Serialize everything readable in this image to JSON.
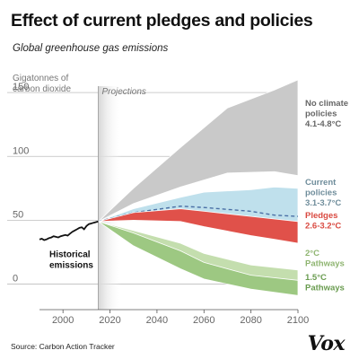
{
  "page": {
    "title": "Effect of current pledges and policies",
    "subtitle": "Global greenhouse gas emissions",
    "source": "Source: Carbon Action Tracker",
    "logo_text": "Vox"
  },
  "chart_data": {
    "type": "area",
    "ylabel_lines": [
      "Gigatonnes of",
      "carbon dioxide"
    ],
    "xlim": [
      1990,
      2100
    ],
    "ylim": [
      -20,
      155
    ],
    "x_ticks": [
      2000,
      2020,
      2040,
      2060,
      2080,
      2100
    ],
    "y_ticks": [
      0,
      50,
      100,
      150
    ],
    "grid": "horizontal",
    "projection_start": 2015,
    "projection_label": "Projections",
    "historical": {
      "name": "Historical emissions",
      "label_lines": [
        "Historical",
        "emissions"
      ],
      "color": "#111111",
      "x": [
        1990,
        1991,
        1992,
        1993,
        1994,
        1995,
        1996,
        1997,
        1998,
        1999,
        2000,
        2001,
        2002,
        2003,
        2004,
        2005,
        2006,
        2007,
        2008,
        2009,
        2010,
        2011,
        2012,
        2013,
        2014,
        2015
      ],
      "y": [
        35,
        35.5,
        34.5,
        35,
        36,
        36.5,
        37.5,
        37,
        36.5,
        37.5,
        38,
        38.5,
        38,
        39.5,
        41,
        42,
        43,
        44,
        44.5,
        43,
        45.5,
        47,
        47.5,
        48,
        48.5,
        49
      ]
    },
    "bands": [
      {
        "name": "No climate policies",
        "label_lines": [
          "No climate",
          "policies",
          "4.1-4.8°C"
        ],
        "color": "#c9c9c9",
        "label_color": "#666666",
        "x": [
          2015,
          2030,
          2050,
          2070,
          2090,
          2100
        ],
        "upper": [
          49,
          75,
          107,
          138,
          152,
          160
        ],
        "lower": [
          49,
          63,
          76,
          87,
          88,
          85
        ]
      },
      {
        "name": "Current policies",
        "label_lines": [
          "Current",
          "policies",
          "3.1-3.7°C"
        ],
        "color": "#bfe0ec",
        "label_color": "#6f8d9b",
        "x": [
          2015,
          2030,
          2050,
          2060,
          2080,
          2090,
          2100
        ],
        "upper": [
          49,
          59,
          68,
          72,
          74,
          76,
          75
        ],
        "lower": [
          49,
          53,
          55,
          52,
          48,
          46,
          44
        ],
        "median": [
          49,
          56,
          61,
          60,
          57,
          54,
          53
        ]
      },
      {
        "name": "Pledges",
        "label_lines": [
          "Pledges",
          "2.6-3.2°C"
        ],
        "color": "#e0514a",
        "label_color": "#d94a41",
        "x": [
          2015,
          2030,
          2050,
          2060,
          2080,
          2090,
          2100
        ],
        "upper": [
          49,
          56,
          59,
          57,
          53,
          51,
          49
        ],
        "lower": [
          49,
          50,
          49,
          45,
          38,
          35,
          32
        ]
      },
      {
        "name": "2°C Pathways",
        "label_lines": [
          "2°C",
          "Pathways"
        ],
        "color": "#c4deae",
        "label_color": "#8fb571",
        "x": [
          2015,
          2030,
          2050,
          2060,
          2080,
          2100
        ],
        "upper": [
          49,
          42,
          32,
          24,
          15,
          11
        ],
        "lower": [
          49,
          37,
          20,
          12,
          3,
          1
        ]
      },
      {
        "name": "1.5°C Pathways",
        "label_lines": [
          "1.5°C",
          "Pathways"
        ],
        "color": "#9dc882",
        "label_color": "#6a9c50",
        "x": [
          2015,
          2030,
          2050,
          2060,
          2080,
          2100
        ],
        "upper": [
          49,
          40,
          26,
          17,
          7,
          3
        ],
        "lower": [
          49,
          30,
          12,
          4,
          -4,
          -9
        ]
      }
    ]
  }
}
